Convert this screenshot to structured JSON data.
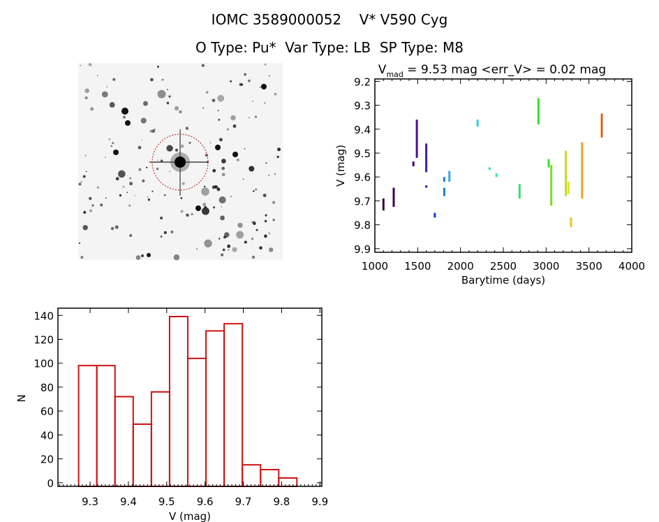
{
  "header": {
    "title_line1": "IOMC 3589000052    V* V590 Cyg",
    "title_line2": "O Type: Pu*  Var Type: LB  SP Type: M8"
  },
  "image_panel": {
    "description_icon": "sky-image"
  },
  "chart_data": [
    {
      "type": "scatter",
      "title_prefix": "V",
      "title_sub": "mad",
      "title_rest": " = 9.53 mag <err_V> = 0.02 mag",
      "xlabel": "Barytime (days)",
      "ylabel": "V (mag)",
      "xlim": [
        1000,
        4000
      ],
      "ylim": [
        9.19,
        9.915
      ],
      "y_inverted": true,
      "xticks": [
        "1000",
        "1500",
        "2000",
        "2500",
        "3000",
        "3500",
        "4000"
      ],
      "yticks": [
        "9.2",
        "9.3",
        "9.4",
        "9.5",
        "9.6",
        "9.7",
        "9.8",
        "9.9"
      ],
      "segments": [
        {
          "x": 1100,
          "ymin": 9.69,
          "ymax": 9.74,
          "color": "#3a0030"
        },
        {
          "x": 1220,
          "ymin": 9.645,
          "ymax": 9.725,
          "color": "#400050"
        },
        {
          "x": 1450,
          "ymin": 9.535,
          "ymax": 9.555,
          "color": "#440077"
        },
        {
          "x": 1490,
          "ymin": 9.36,
          "ymax": 9.52,
          "color": "#4a1090"
        },
        {
          "x": 1600,
          "ymin": 9.46,
          "ymax": 9.58,
          "color": "#3a20b0"
        },
        {
          "x": 1600,
          "ymin": 9.635,
          "ymax": 9.645,
          "color": "#3a20b0"
        },
        {
          "x": 1700,
          "ymin": 9.75,
          "ymax": 9.77,
          "color": "#1040d0"
        },
        {
          "x": 1810,
          "ymin": 9.6,
          "ymax": 9.62,
          "color": "#1a80d8"
        },
        {
          "x": 1810,
          "ymin": 9.645,
          "ymax": 9.68,
          "color": "#1a80d8"
        },
        {
          "x": 1870,
          "ymin": 9.575,
          "ymax": 9.62,
          "color": "#30a8e0"
        },
        {
          "x": 2200,
          "ymin": 9.36,
          "ymax": 9.39,
          "color": "#30d0e0"
        },
        {
          "x": 2340,
          "ymin": 9.56,
          "ymax": 9.57,
          "color": "#30d8d0"
        },
        {
          "x": 2420,
          "ymin": 9.585,
          "ymax": 9.6,
          "color": "#30e0c0"
        },
        {
          "x": 2690,
          "ymin": 9.63,
          "ymax": 9.69,
          "color": "#30e070"
        },
        {
          "x": 2910,
          "ymin": 9.27,
          "ymax": 9.38,
          "color": "#30e030"
        },
        {
          "x": 3030,
          "ymin": 9.525,
          "ymax": 9.56,
          "color": "#40e030"
        },
        {
          "x": 3060,
          "ymin": 9.55,
          "ymax": 9.72,
          "color": "#70e020"
        },
        {
          "x": 3230,
          "ymin": 9.49,
          "ymax": 9.68,
          "color": "#c0e020"
        },
        {
          "x": 3260,
          "ymin": 9.62,
          "ymax": 9.67,
          "color": "#e8e020"
        },
        {
          "x": 3290,
          "ymin": 9.77,
          "ymax": 9.81,
          "color": "#f0c020"
        },
        {
          "x": 3420,
          "ymin": 9.455,
          "ymax": 9.69,
          "color": "#f0a020"
        },
        {
          "x": 3650,
          "ymin": 9.335,
          "ymax": 9.435,
          "color": "#e06010"
        }
      ]
    },
    {
      "type": "bar",
      "xlabel": "V (mag)",
      "ylabel": "N",
      "xlim": [
        9.216,
        9.905
      ],
      "ylim": [
        -3,
        146
      ],
      "xticks": [
        "9.3",
        "9.4",
        "9.5",
        "9.6",
        "9.7",
        "9.8",
        "9.9"
      ],
      "yticks": [
        "0",
        "20",
        "40",
        "60",
        "80",
        "100",
        "120",
        "140"
      ],
      "bin_start": 9.27,
      "bin_width": 0.0475,
      "values": [
        98,
        98,
        72,
        49,
        76,
        139,
        104,
        127,
        133,
        15,
        11,
        4
      ],
      "color": "#d01010"
    }
  ]
}
